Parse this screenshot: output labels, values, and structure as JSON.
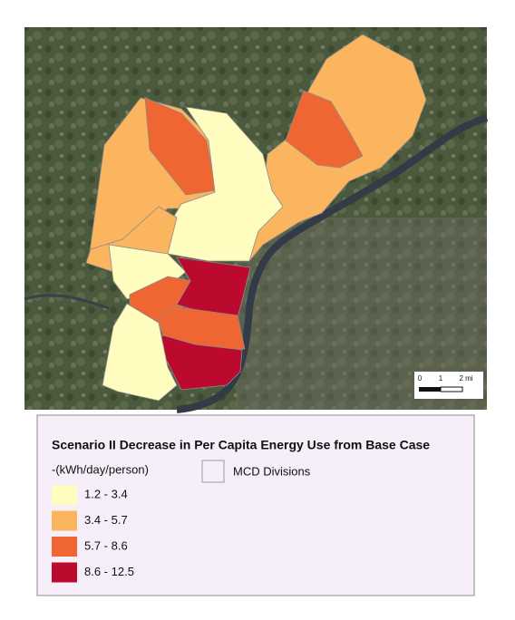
{
  "map": {
    "legend": {
      "title": "Scenario II Decrease in Per Capita Energy Use from Base Case",
      "subtitle": "-(kWh/day/person)",
      "classes": [
        {
          "label": "1.2 - 3.4",
          "color": "#fefcbf"
        },
        {
          "label": "3.4 - 5.7",
          "color": "#fbb55e"
        },
        {
          "label": "5.7 - 8.6",
          "color": "#ef6633"
        },
        {
          "label": "8.6 - 12.5",
          "color": "#bc0a2f"
        }
      ],
      "boundary_label": "MCD Divisions"
    },
    "scale_bar": {
      "labels": [
        "0",
        "1",
        "2 mi"
      ]
    }
  }
}
